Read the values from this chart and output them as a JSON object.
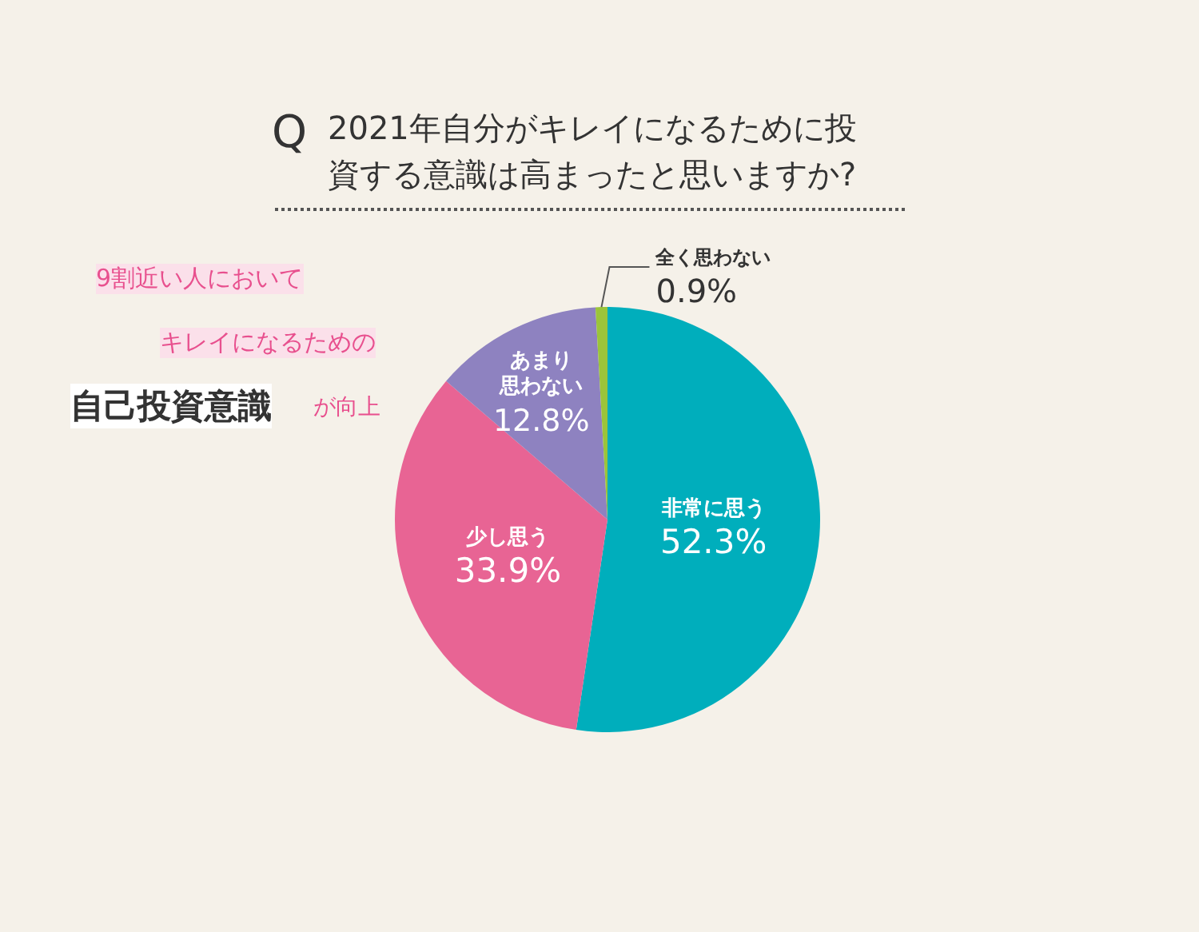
{
  "chart_data": {
    "type": "pie",
    "title": "2021年自分がキレイになるために投資する意識は高まったと思いますか?",
    "categories": [
      "非常に思う",
      "少し思う",
      "あまり思わない",
      "全く思わない"
    ],
    "values": [
      52.3,
      33.9,
      12.8,
      0.9
    ],
    "value_labels": [
      "52.3%",
      "33.9%",
      "12.8%",
      "0.9%"
    ],
    "colors": [
      "#00aebc",
      "#e86494",
      "#8e82c0",
      "#9bc43a"
    ],
    "legend": false,
    "annotations": [
      "Q",
      "9割近い人において",
      "キレイになるための",
      "自己投資意識",
      "が向上"
    ]
  }
}
